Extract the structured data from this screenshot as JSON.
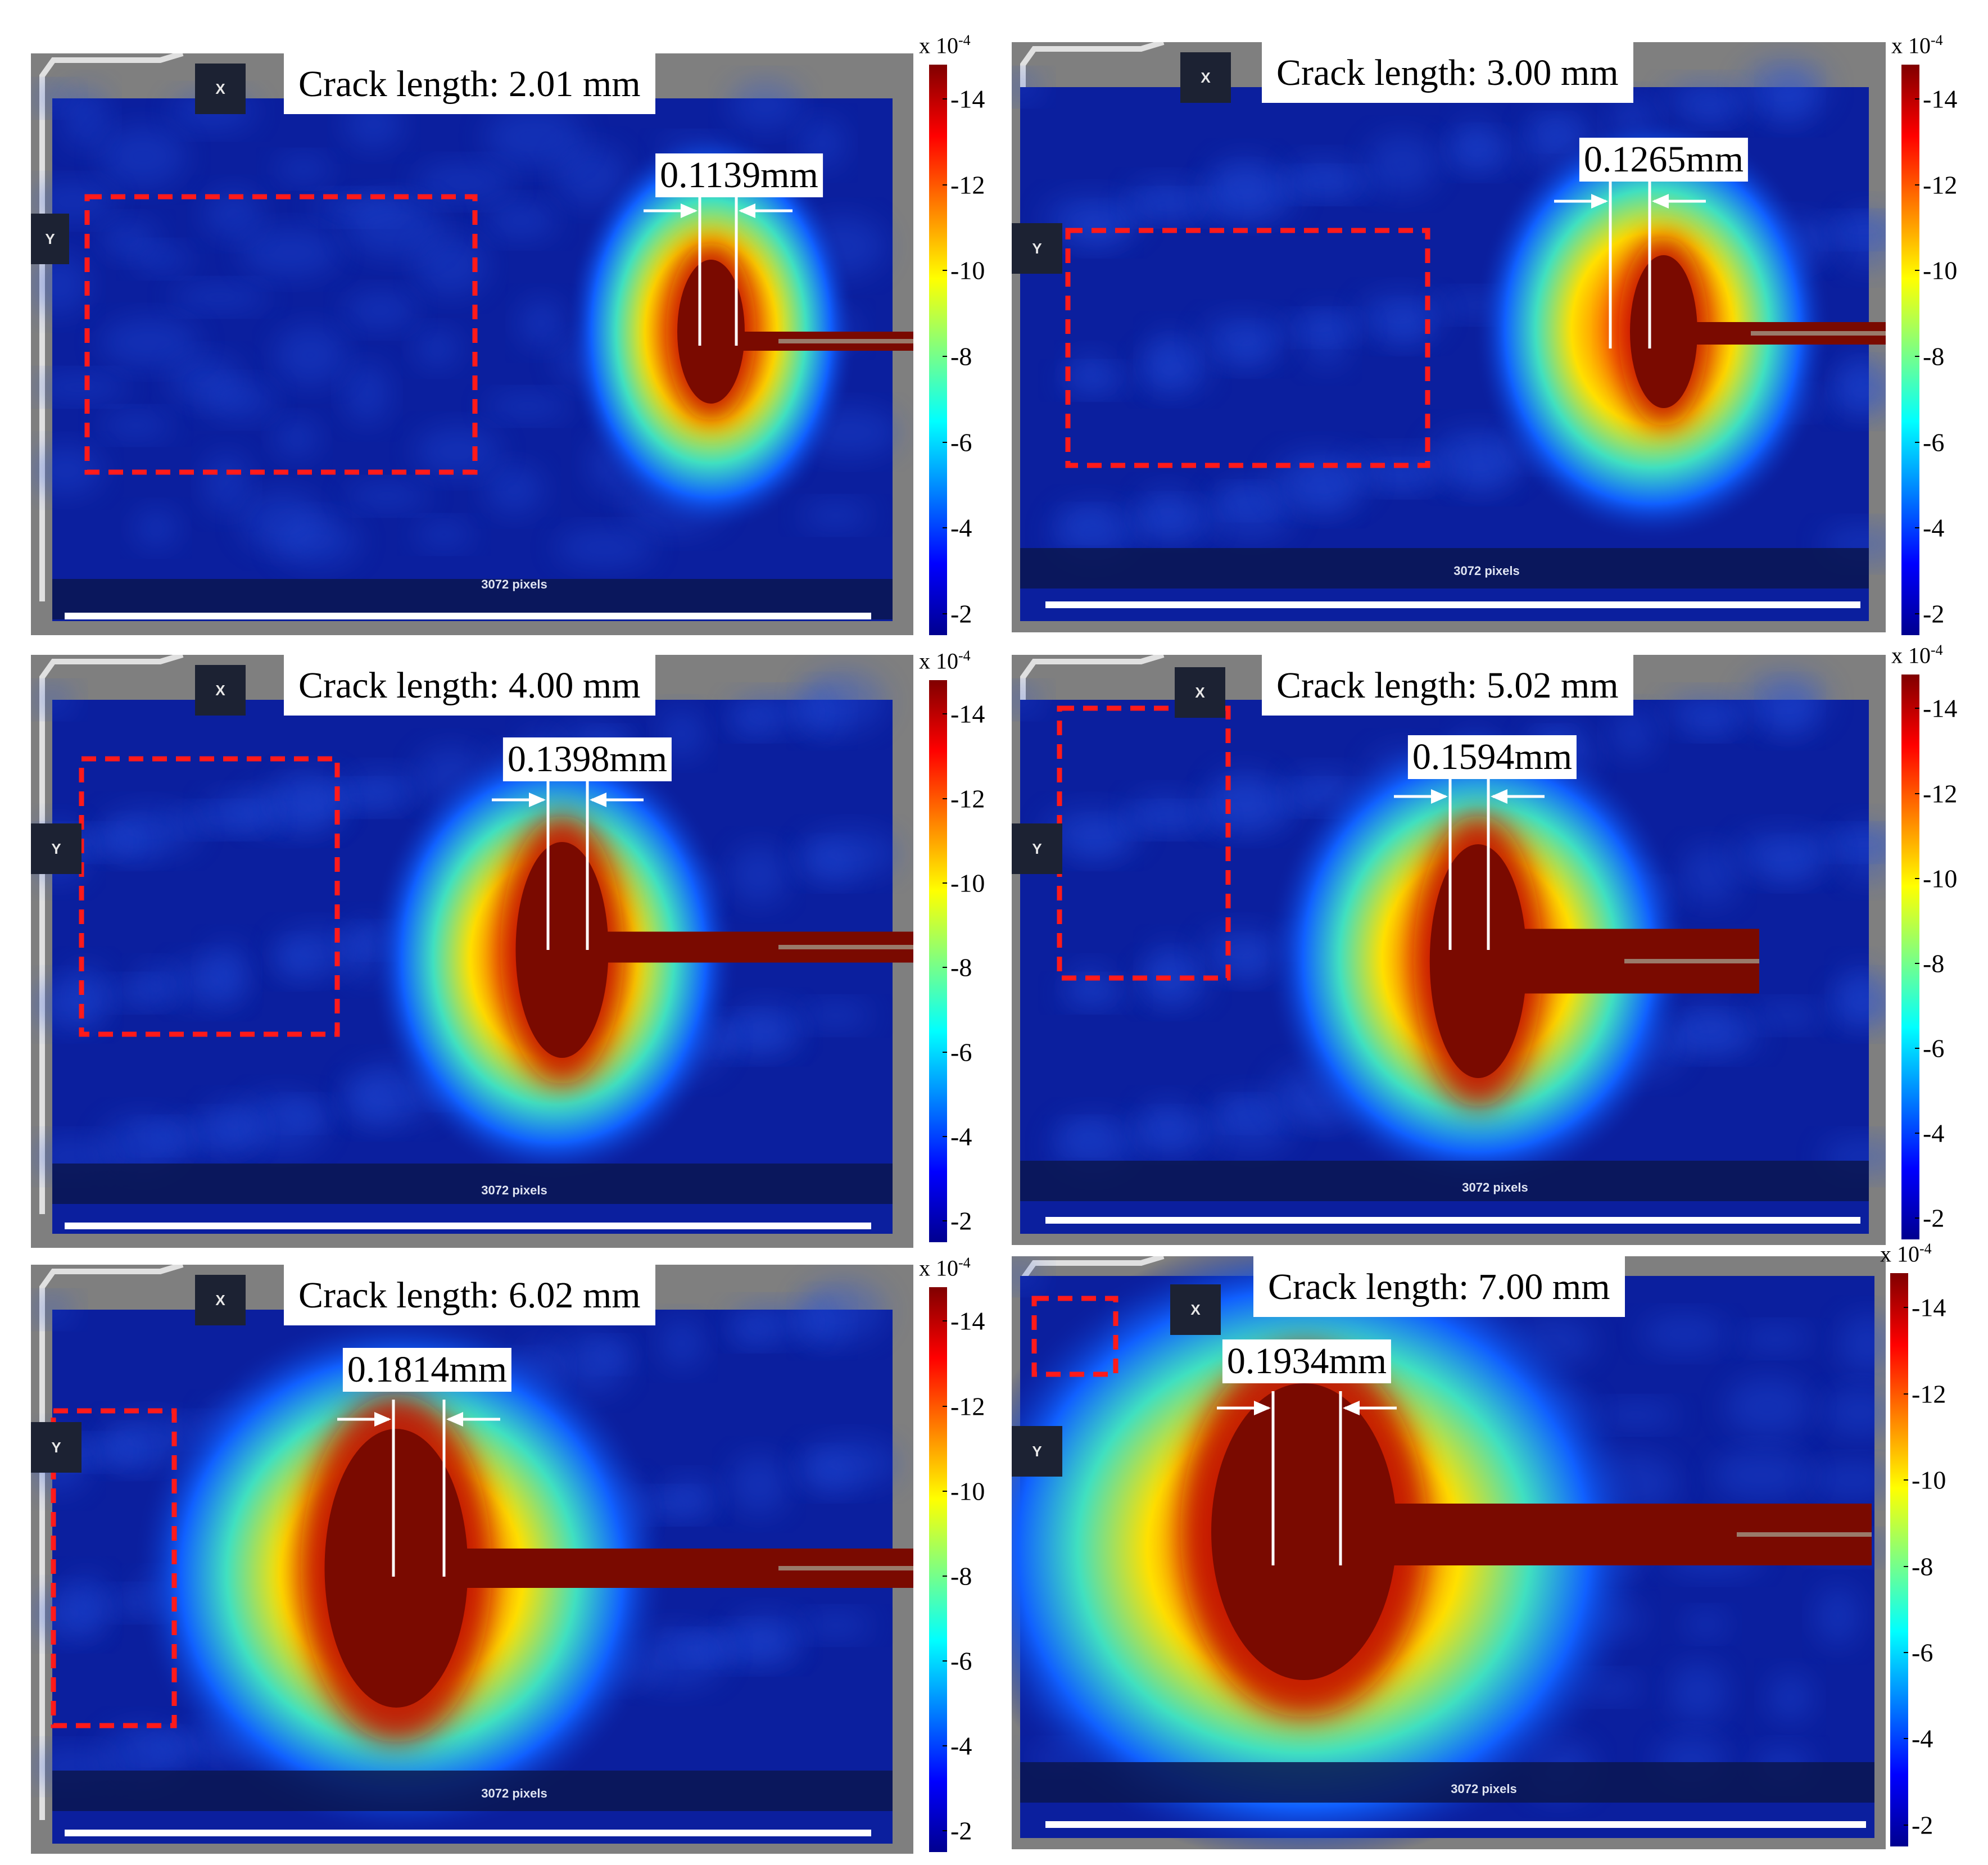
{
  "panels": [
    {
      "title": "Crack length: 2.01 mm",
      "width_label": "0.1139mm",
      "x_tag": "X",
      "y_tag": "Y",
      "scale_text": "3072 pixels"
    },
    {
      "title": "Crack length: 3.00 mm",
      "width_label": "0.1265mm",
      "x_tag": "X",
      "y_tag": "Y",
      "scale_text": "3072 pixels"
    },
    {
      "title": "Crack length: 4.00 mm",
      "width_label": "0.1398mm",
      "x_tag": "X",
      "y_tag": "Y",
      "scale_text": "3072 pixels"
    },
    {
      "title": "Crack length: 5.02 mm",
      "width_label": "0.1594mm",
      "x_tag": "X",
      "y_tag": "Y",
      "scale_text": "3072 pixels"
    },
    {
      "title": "Crack length: 6.02 mm",
      "width_label": "0.1814mm",
      "x_tag": "X",
      "y_tag": "Y",
      "scale_text": "3072 pixels"
    },
    {
      "title": "Crack length: 7.00 mm",
      "width_label": "0.1934mm",
      "x_tag": "X",
      "y_tag": "Y",
      "scale_text": "3072 pixels"
    }
  ],
  "colorbar": {
    "exponent_base": "x 10",
    "exponent_power": "-4",
    "ticks": [
      "-14",
      "-12",
      "-10",
      "-8",
      "-6",
      "-4",
      "-2"
    ],
    "range": [
      -1.5,
      -14.8
    ],
    "colormap": [
      "#00008f",
      "#0000ff",
      "#0080ff",
      "#00ffff",
      "#80ff80",
      "#ffff00",
      "#ff8000",
      "#ff0000",
      "#800000"
    ]
  },
  "colors": {
    "field_background": "#0b1f9e",
    "crack": "#7a0a00",
    "roi_box": "#ff1a1a",
    "frame_gray": "#7f7f7f"
  }
}
